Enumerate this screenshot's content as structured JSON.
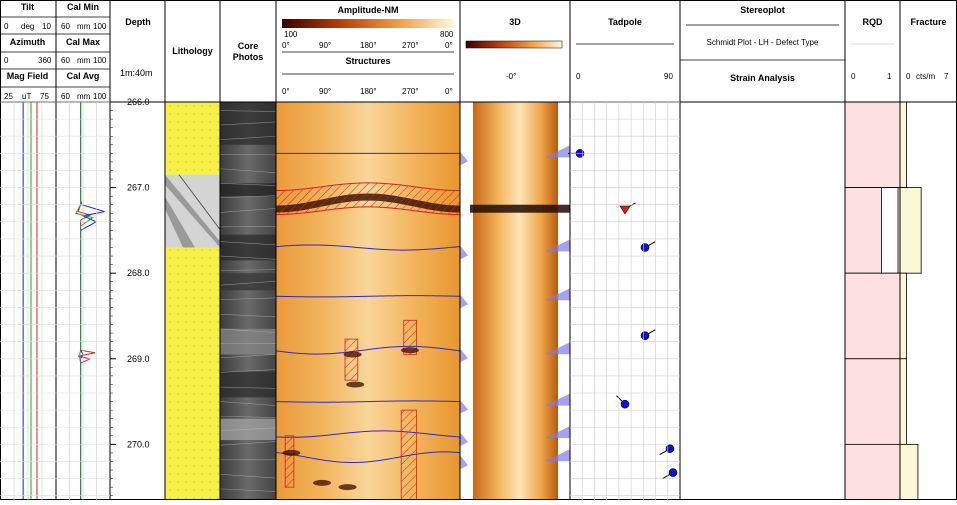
{
  "headers": {
    "tilt": {
      "title": "Tilt",
      "min": "0",
      "unit": "deg",
      "max": "10",
      "color": "#d62020"
    },
    "azimuth": {
      "title": "Azimuth",
      "min": "0",
      "unit": "",
      "max": "360",
      "color": "#2020d0"
    },
    "mag_field": {
      "title": "Mag Field",
      "min": "25",
      "unit": "uT",
      "max": "75",
      "color": "#20a020"
    },
    "cal_min": {
      "title": "Cal Min",
      "min": "60",
      "unit": "mm",
      "max": "100",
      "color": "#d62020"
    },
    "cal_max": {
      "title": "Cal Max",
      "min": "60",
      "unit": "mm",
      "max": "100",
      "color": "#2020d0"
    },
    "cal_avg": {
      "title": "Cal Avg",
      "min": "60",
      "unit": "mm",
      "max": "100",
      "color": "#20a020"
    },
    "depth": {
      "title": "Depth",
      "scale": "1m:40m"
    },
    "lithology": {
      "title": "Lithology"
    },
    "core_photos": {
      "title": "Core\nPhotos"
    },
    "amplitude": {
      "title": "Amplitude-NM",
      "min": "100",
      "max": "800",
      "ticks": [
        "0°",
        "90°",
        "180°",
        "270°",
        "0°"
      ]
    },
    "structures": {
      "title": "Structures",
      "ticks": [
        "0°",
        "90°",
        "180°",
        "270°",
        "0°"
      ]
    },
    "threed": {
      "title": "3D",
      "angle": "-0°"
    },
    "tadpole": {
      "title": "Tadpole",
      "min": "0",
      "max": "90"
    },
    "stereoplot": {
      "title": "Stereoplot",
      "subtitle": "Schmidt Plot - LH - Defect Type",
      "analysis": "Strain Analysis"
    },
    "rqd": {
      "title": "RQD",
      "min": "0",
      "max": "1"
    },
    "fracture": {
      "title": "Fracture",
      "min": "0",
      "unit": "cts/m",
      "max": "7"
    }
  },
  "chart_data": {
    "type": "borehole-log",
    "depth_unit": "m",
    "depth_range": [
      266.0,
      270.65
    ],
    "depth_labels": [
      "266.0",
      "267.0",
      "268.0",
      "269.0",
      "270.0"
    ],
    "depth_ticks": [
      266.0,
      267.0,
      268.0,
      269.0,
      270.0
    ],
    "lithology": [
      {
        "top": 266.0,
        "bottom": 266.85,
        "type": "sandstone",
        "color": "#f6f048"
      },
      {
        "top": 266.85,
        "bottom": 267.7,
        "type": "breccia",
        "color": "#d4d4d4"
      },
      {
        "top": 267.7,
        "bottom": 270.65,
        "type": "sandstone",
        "color": "#f6f048"
      }
    ],
    "structures": [
      {
        "depth": 266.6,
        "amplitude": 0.0,
        "phase_deg": 0,
        "kind": "flat"
      },
      {
        "depth": 267.13,
        "amplitude": 0.18,
        "phase_deg": 90,
        "kind": "fracture-zone"
      },
      {
        "depth": 267.7,
        "amplitude": 0.12,
        "phase_deg": 200,
        "kind": "sine"
      },
      {
        "depth": 268.27,
        "amplitude": 0.03,
        "phase_deg": 0,
        "kind": "flat"
      },
      {
        "depth": 268.9,
        "amplitude": 0.18,
        "phase_deg": 10,
        "kind": "sine"
      },
      {
        "depth": 269.5,
        "amplitude": 0.03,
        "phase_deg": 0,
        "kind": "flat"
      },
      {
        "depth": 269.88,
        "amplitude": 0.15,
        "phase_deg": 60,
        "kind": "sine"
      },
      {
        "depth": 270.15,
        "amplitude": 0.25,
        "phase_deg": 300,
        "kind": "sine"
      }
    ],
    "hatch_zones": [
      {
        "top": 268.77,
        "bottom": 269.25,
        "az_from": 135,
        "az_to": 160
      },
      {
        "top": 268.55,
        "bottom": 268.95,
        "az_from": 250,
        "az_to": 275
      },
      {
        "top": 269.6,
        "bottom": 270.65,
        "az_from": 245,
        "az_to": 275
      },
      {
        "top": 269.9,
        "bottom": 270.5,
        "az_from": 18,
        "az_to": 35
      }
    ],
    "tadpoles": [
      {
        "depth": 266.6,
        "dip": 5,
        "azimuth": 270,
        "type": "circle"
      },
      {
        "depth": 267.25,
        "dip": 50,
        "azimuth": 60,
        "type": "triangle"
      },
      {
        "depth": 267.7,
        "dip": 70,
        "azimuth": 60,
        "type": "circle"
      },
      {
        "depth": 268.73,
        "dip": 70,
        "azimuth": 60,
        "type": "circle"
      },
      {
        "depth": 269.53,
        "dip": 50,
        "azimuth": 315,
        "type": "circle"
      },
      {
        "depth": 270.05,
        "dip": 95,
        "azimuth": 240,
        "type": "circle"
      },
      {
        "depth": 270.33,
        "dip": 98,
        "azimuth": 240,
        "type": "circle"
      }
    ],
    "rqd_intervals": [
      {
        "top": 266.0,
        "bottom": 267.0,
        "value": 0
      },
      {
        "top": 267.0,
        "bottom": 268.0,
        "value": 0.3
      },
      {
        "top": 268.0,
        "bottom": 269.0,
        "value": 0
      },
      {
        "top": 269.0,
        "bottom": 270.0,
        "value": 0
      },
      {
        "top": 270.0,
        "bottom": 270.65,
        "value": 0
      }
    ],
    "fracture_intervals": [
      {
        "top": 266.0,
        "bottom": 267.0,
        "value": 0.8
      },
      {
        "top": 267.0,
        "bottom": 268.0,
        "value": 2.6
      },
      {
        "top": 268.0,
        "bottom": 269.0,
        "value": 0.8
      },
      {
        "top": 269.0,
        "bottom": 270.0,
        "value": 0.8
      },
      {
        "top": 270.0,
        "bottom": 270.65,
        "value": 2.2
      }
    ],
    "tilt": {
      "x": [
        6.8,
        6.8,
        6.8,
        6.8,
        6.8,
        6.8
      ],
      "depth": [
        266.0,
        267.0,
        268.0,
        269.0,
        270.0,
        270.65
      ]
    },
    "azimuth": {
      "x": [
        145,
        145,
        145,
        145,
        145,
        145
      ],
      "depth": [
        266.0,
        267.0,
        268.0,
        269.0,
        270.0,
        270.65
      ]
    },
    "mag_field": {
      "x": [
        53,
        53,
        53,
        53,
        53,
        53
      ],
      "depth": [
        266.0,
        267.0,
        268.0,
        269.0,
        270.0,
        270.65
      ]
    },
    "cal_min": {
      "x": [
        78,
        78,
        78,
        76,
        86,
        78,
        78,
        78,
        90,
        76,
        86,
        78,
        78,
        78
      ],
      "depth": [
        266.0,
        267.1,
        267.2,
        267.28,
        267.32,
        267.38,
        268.0,
        268.9,
        268.93,
        268.97,
        269.0,
        269.05,
        270.0,
        270.65
      ]
    },
    "cal_max": {
      "x": [
        78,
        78,
        79,
        98,
        80,
        91,
        78,
        78,
        80,
        78,
        78
      ],
      "depth": [
        266.0,
        267.15,
        267.2,
        267.28,
        267.33,
        267.4,
        267.5,
        268.9,
        268.95,
        269.0,
        270.65
      ]
    },
    "cal_avg": {
      "x": [
        78,
        78,
        74,
        88,
        78,
        78,
        77,
        78,
        78
      ],
      "depth": [
        266.0,
        267.2,
        267.3,
        267.35,
        267.45,
        268.9,
        268.97,
        269.05,
        270.65
      ]
    }
  }
}
